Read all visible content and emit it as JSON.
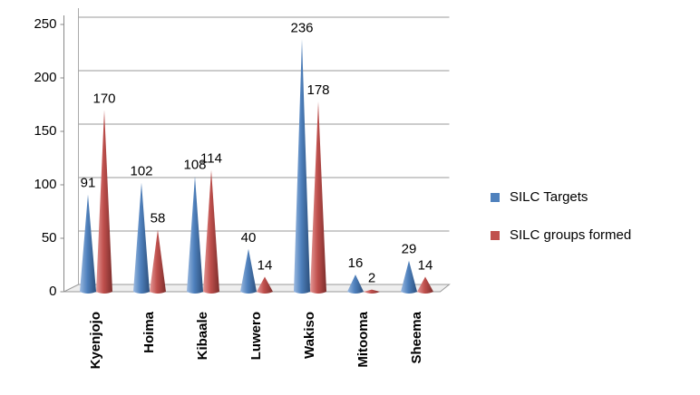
{
  "chart_data": {
    "type": "bar",
    "categories": [
      "Kyenjojo",
      "Hoima",
      "Kibaale",
      "Luwero",
      "Wakiso",
      "Mitooma",
      "Sheema"
    ],
    "series": [
      {
        "name": "SILC Targets",
        "color": "#4f81bd",
        "values": [
          91,
          102,
          108,
          40,
          236,
          16,
          29
        ]
      },
      {
        "name": "SILC groups  formed",
        "color": "#c0504d",
        "values": [
          170,
          58,
          114,
          14,
          178,
          2,
          14
        ]
      }
    ],
    "ylim": [
      0,
      250
    ],
    "yticks": [
      0,
      50,
      100,
      150,
      200,
      250
    ],
    "grid": true,
    "legend": "right"
  }
}
